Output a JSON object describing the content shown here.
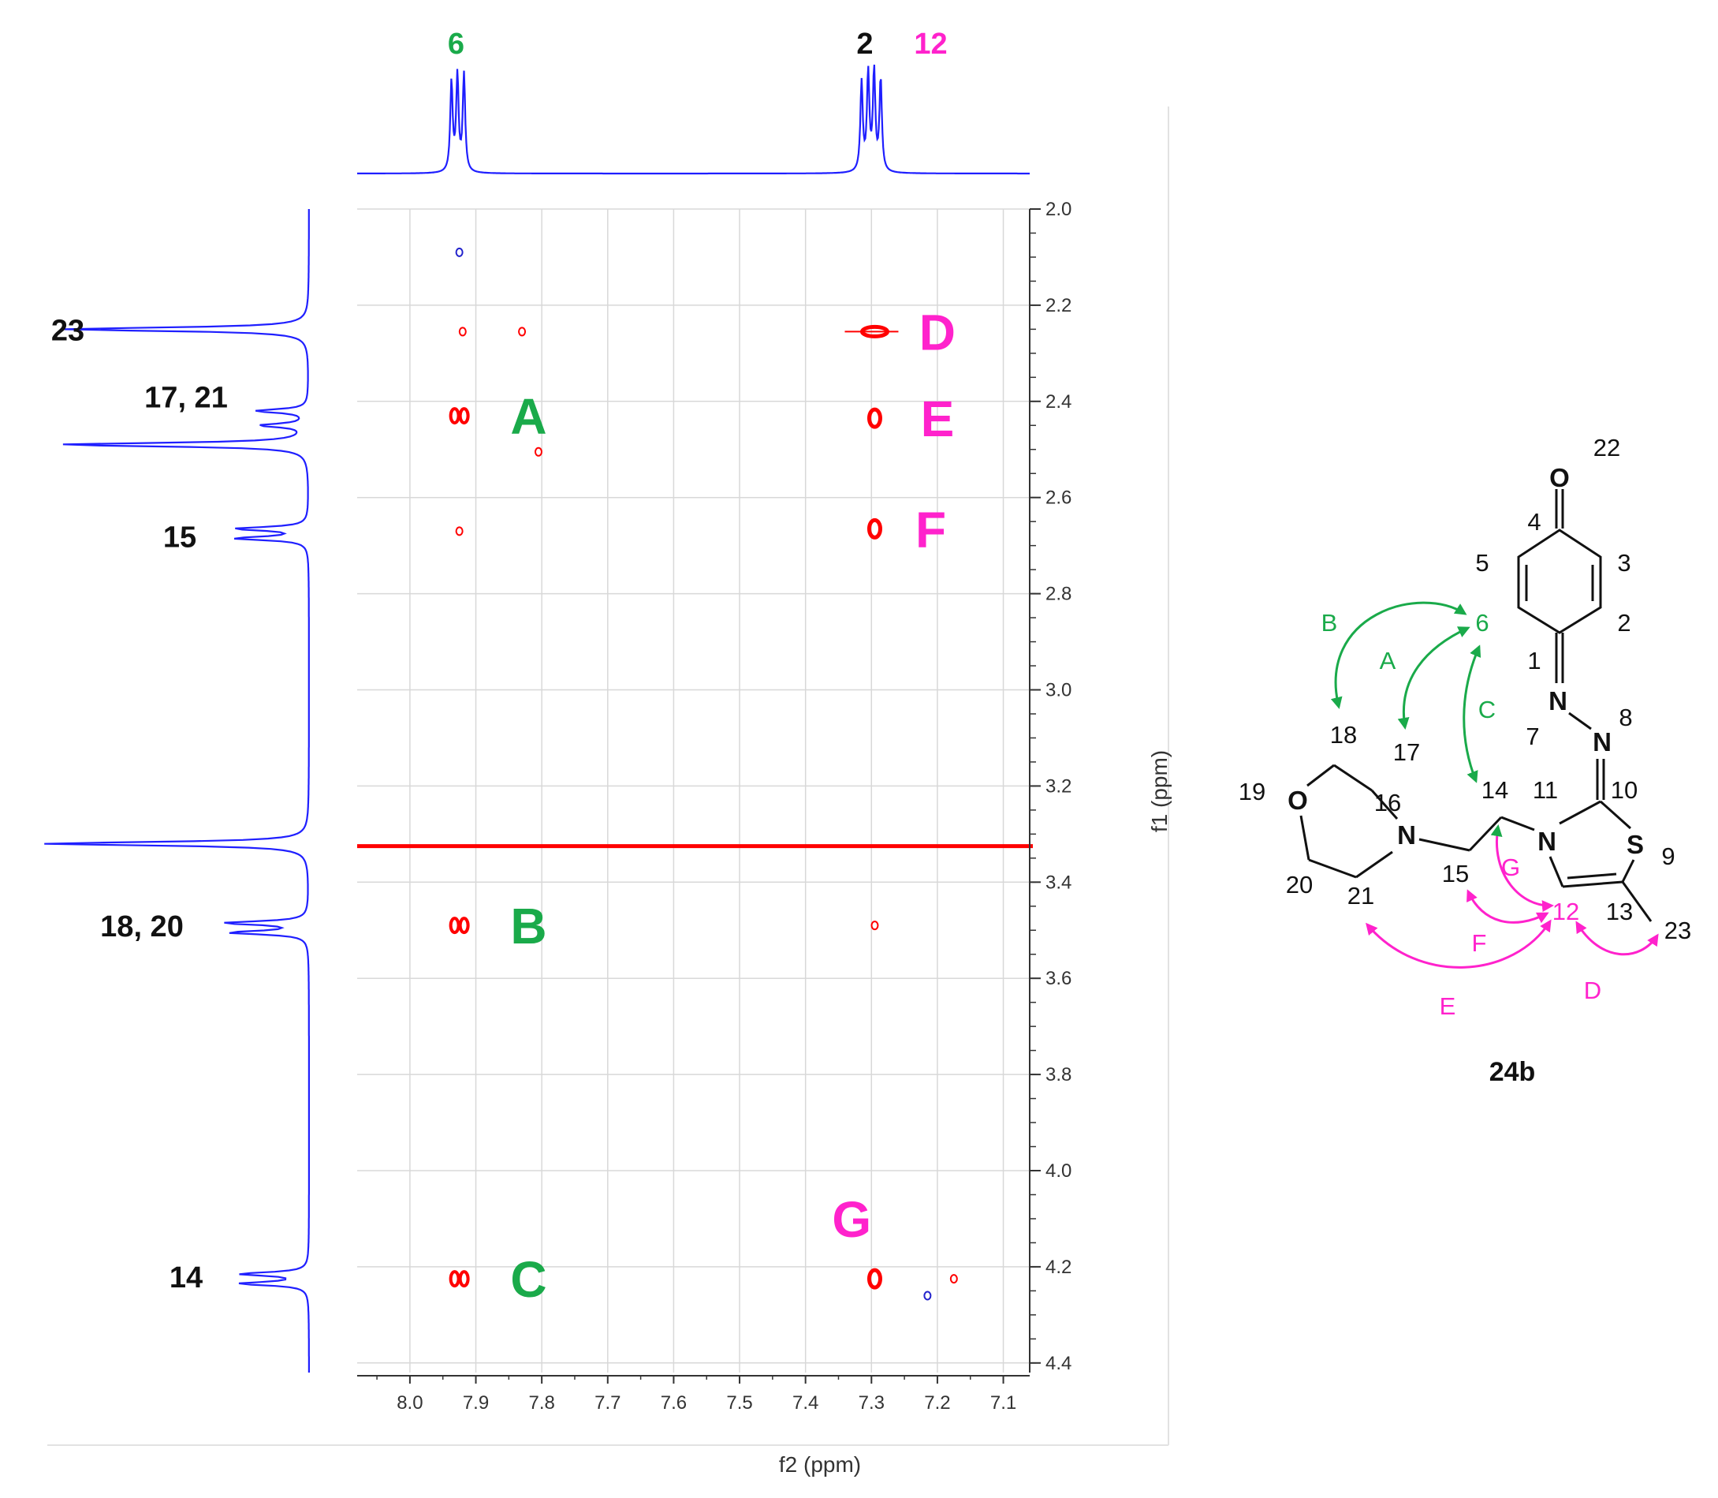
{
  "chart_data": {
    "type": "heatmap",
    "subtype": "2D NMR NOESY contour plot with 1D projections and molecular structure",
    "xlabel": "f2 (ppm)",
    "ylabel": "f1 (ppm)",
    "xlim": [
      8.08,
      7.06
    ],
    "ylim": [
      2.0,
      4.42
    ],
    "x_reversed": true,
    "y_reversed": true,
    "grid": true,
    "xticks": [
      "8.0",
      "7.9",
      "7.8",
      "7.7",
      "7.6",
      "7.5",
      "7.4",
      "7.3",
      "7.2",
      "7.1"
    ],
    "yticks": [
      "2.0",
      "2.2",
      "2.4",
      "2.6",
      "2.8",
      "3.0",
      "3.2",
      "3.4",
      "3.6",
      "3.8",
      "4.0",
      "4.2",
      "4.4"
    ],
    "colors": {
      "spectrum": "#1f1fff",
      "positive": "#ff0000",
      "negative": "#2222cc",
      "green": "#1aaa4a",
      "magenta": "#ff22cc",
      "black": "#111111"
    },
    "top_projection_labels": [
      {
        "text": "6",
        "x": 7.93,
        "color": "#1aaa4a"
      },
      {
        "text": "2",
        "x": 7.31,
        "color": "#111111"
      },
      {
        "text": "12",
        "x": 7.21,
        "color": "#ff22cc"
      }
    ],
    "top_peaks": [
      {
        "x": 7.937,
        "height": 0.87
      },
      {
        "x": 7.928,
        "height": 0.93
      },
      {
        "x": 7.918,
        "height": 0.95
      },
      {
        "x": 7.315,
        "height": 0.87
      },
      {
        "x": 7.305,
        "height": 0.95
      },
      {
        "x": 7.296,
        "height": 0.97
      },
      {
        "x": 7.286,
        "height": 0.9
      }
    ],
    "left_projection_labels": [
      {
        "text": "23",
        "y": 2.25
      },
      {
        "text": "17, 21",
        "y": 2.39
      },
      {
        "text": "15",
        "y": 2.68
      },
      {
        "text": "18, 20",
        "y": 3.49
      },
      {
        "text": "14",
        "y": 4.22
      }
    ],
    "left_peaks": [
      {
        "y": 2.25,
        "height": 0.94
      },
      {
        "y": 2.42,
        "height": 0.2
      },
      {
        "y": 2.45,
        "height": 0.18
      },
      {
        "y": 2.49,
        "height": 0.96
      },
      {
        "y": 2.665,
        "height": 0.28
      },
      {
        "y": 2.685,
        "height": 0.28
      },
      {
        "y": 3.32,
        "height": 1.02
      },
      {
        "y": 3.485,
        "height": 0.32
      },
      {
        "y": 3.505,
        "height": 0.3
      },
      {
        "y": 4.215,
        "height": 0.26
      },
      {
        "y": 4.235,
        "height": 0.26
      }
    ],
    "cross_peaks": [
      {
        "x": 7.925,
        "y": 2.43,
        "label": "A",
        "sign": "positive"
      },
      {
        "x": 7.925,
        "y": 3.49,
        "label": "B",
        "sign": "positive"
      },
      {
        "x": 7.925,
        "y": 4.225,
        "label": "C",
        "sign": "positive"
      },
      {
        "x": 7.295,
        "y": 2.255,
        "label": "D",
        "sign": "positive"
      },
      {
        "x": 7.295,
        "y": 2.435,
        "label": "E",
        "sign": "positive"
      },
      {
        "x": 7.295,
        "y": 2.665,
        "label": "F",
        "sign": "positive"
      },
      {
        "x": 7.295,
        "y": 4.225,
        "label": "G",
        "sign": "positive"
      }
    ],
    "minor_peaks": [
      {
        "x": 7.925,
        "y": 2.09,
        "sign": "negative"
      },
      {
        "x": 7.925,
        "y": 2.67,
        "sign": "positive"
      },
      {
        "x": 7.83,
        "y": 2.255,
        "sign": "positive"
      },
      {
        "x": 7.92,
        "y": 2.255,
        "sign": "positive"
      },
      {
        "x": 7.805,
        "y": 2.505,
        "sign": "positive"
      },
      {
        "x": 7.295,
        "y": 3.49,
        "sign": "positive"
      },
      {
        "x": 7.215,
        "y": 4.26,
        "sign": "negative"
      },
      {
        "x": 7.175,
        "y": 4.225,
        "sign": "positive"
      }
    ],
    "solvent_line_y": 3.325,
    "correlation_labels": [
      {
        "text": "A",
        "x": 7.82,
        "y": 2.43,
        "color": "#1aaa4a"
      },
      {
        "text": "B",
        "x": 7.82,
        "y": 3.49,
        "color": "#1aaa4a"
      },
      {
        "text": "C",
        "x": 7.82,
        "y": 4.225,
        "color": "#1aaa4a"
      },
      {
        "text": "D",
        "x": 7.2,
        "y": 2.255,
        "color": "#ff22cc"
      },
      {
        "text": "E",
        "x": 7.2,
        "y": 2.435,
        "color": "#ff22cc"
      },
      {
        "text": "F",
        "x": 7.21,
        "y": 2.665,
        "color": "#ff22cc"
      },
      {
        "text": "G",
        "x": 7.33,
        "y": 4.1,
        "color": "#ff22cc"
      }
    ]
  },
  "structure": {
    "compound_label": "24b",
    "atom_labels": {
      "o_carbonyl": "O",
      "n7": "N",
      "n8": "N",
      "n11": "N",
      "s9": "S",
      "n16": "N",
      "o19": "O"
    },
    "numbers": {
      "n1": "1",
      "n2": "2",
      "n3": "3",
      "n4": "4",
      "n5": "5",
      "n6": "6",
      "n7": "7",
      "n8": "8",
      "n9": "9",
      "n10": "10",
      "n11": "11",
      "n12": "12",
      "n13": "13",
      "n14": "14",
      "n15": "15",
      "n16": "16",
      "n17": "17",
      "n18": "18",
      "n19": "19",
      "n20": "20",
      "n21": "21",
      "n22": "22",
      "n23": "23"
    },
    "arrow_labels": {
      "a": "A",
      "b": "B",
      "c": "C",
      "d": "D",
      "e": "E",
      "f": "F",
      "g": "G"
    }
  }
}
